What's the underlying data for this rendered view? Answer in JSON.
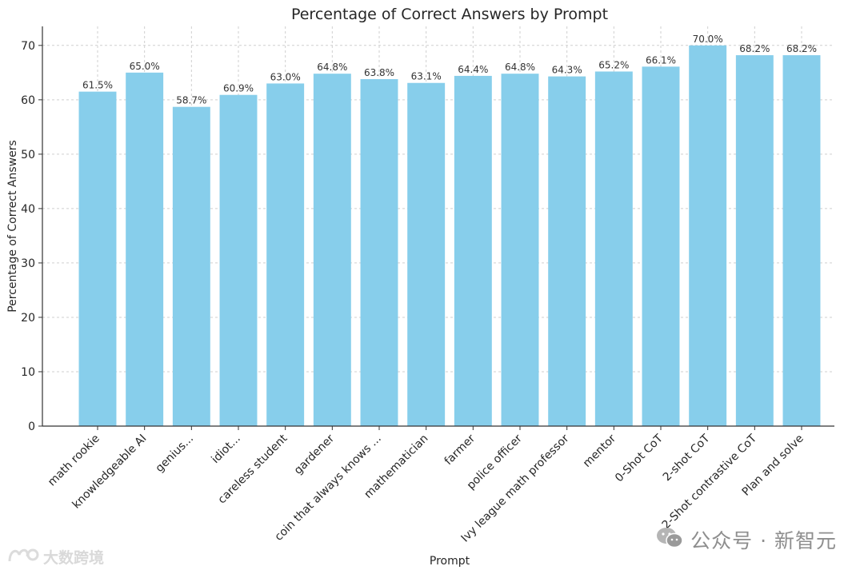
{
  "chart_data": {
    "type": "bar",
    "title": "Percentage of Correct Answers by Prompt",
    "xlabel": "Prompt",
    "ylabel": "Percentage of Correct Answers",
    "ylim": [
      0,
      73.5
    ],
    "yticks": [
      0,
      10,
      20,
      30,
      40,
      50,
      60,
      70
    ],
    "grid": true,
    "bar_color": "#87ceeb",
    "categories": [
      "math rookie",
      "knowledgeable AI",
      "genius...",
      "idiot...",
      "careless student",
      "gardener",
      "coin that always knows ...",
      "mathematician",
      "farmer",
      "police officer",
      "Ivy league math professor",
      "mentor",
      "0-Shot CoT",
      "2-shot CoT",
      "2-Shot contrastive CoT",
      "Plan and solve"
    ],
    "values": [
      61.5,
      65.0,
      58.7,
      60.9,
      63.0,
      64.8,
      63.8,
      63.1,
      64.4,
      64.8,
      64.3,
      65.2,
      66.1,
      70.0,
      68.2,
      68.2
    ],
    "data_labels": [
      "61.5%",
      "65.0%",
      "58.7%",
      "60.9%",
      "63.0%",
      "64.8%",
      "63.8%",
      "63.1%",
      "64.4%",
      "64.8%",
      "64.3%",
      "65.2%",
      "66.1%",
      "70.0%",
      "68.2%",
      "68.2%"
    ]
  },
  "watermarks": {
    "right_text": "公众号 · 新智元",
    "left_text": "大数跨境",
    "right_icon": "wechat-icon",
    "left_icon": "logo-icon"
  }
}
